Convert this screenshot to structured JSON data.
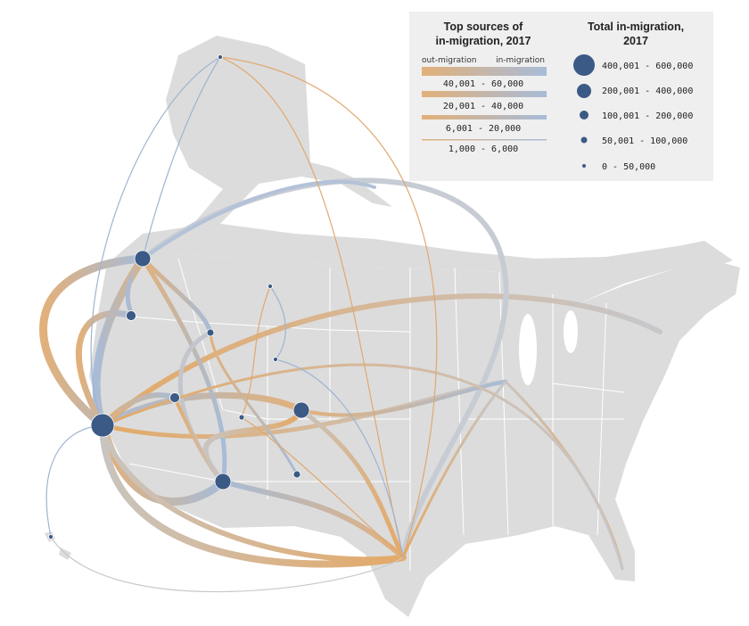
{
  "legend": {
    "flows": {
      "title_lines": [
        "Top sources of",
        "in-migration, 2017"
      ],
      "left_label": "out-migration",
      "right_label": "in-migration",
      "ranges": [
        "40,001 - 60,000",
        "20,001 - 40,000",
        "6,001 - 20,000",
        "1,000 - 6,000"
      ]
    },
    "totals": {
      "title_lines": [
        "Total in-migration,",
        "2017"
      ],
      "ranges": [
        "400,001 - 600,000",
        "200,001 - 400,000",
        "100,001 - 200,000",
        "50,001 - 100,000",
        "0 - 50,000"
      ]
    }
  }
}
